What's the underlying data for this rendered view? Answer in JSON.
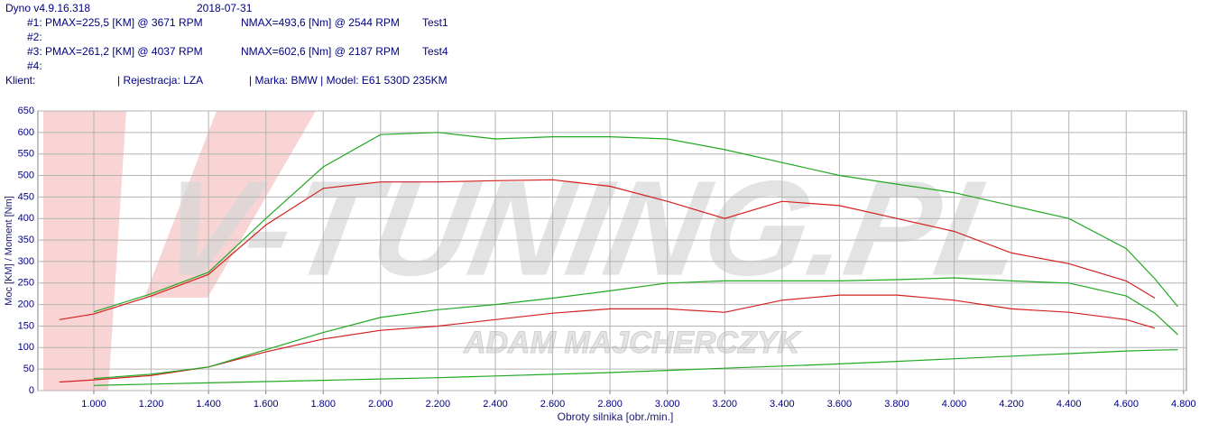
{
  "header": {
    "app": "Dyno v4.9.16.318",
    "date": "2018-07-31",
    "runs": [
      {
        "id": "#1: PMAX=225,5 [KM] @ 3671 RPM",
        "nmax": "NMAX=493,6 [Nm] @ 2544 RPM",
        "test": "Test1"
      },
      {
        "id": "#2:"
      },
      {
        "id": "#3: PMAX=261,2 [KM] @ 4037 RPM",
        "nmax": "NMAX=602,6 [Nm] @ 2187 RPM",
        "test": "Test4"
      },
      {
        "id": "#4:"
      }
    ],
    "client": "Klient:",
    "registration": "| Rejestracja: LZA",
    "make": "| Marka: BMW | Model: E61 530D 235KM"
  },
  "chart_data": {
    "type": "line",
    "watermark": "V-TUNING.PL",
    "watermark_sub": "ADAM MAJCHERCZYK",
    "x_label": "Obroty silnika [obr./min.]",
    "y_label": "Moc [KM] / Moment [Nm]",
    "x": [
      880,
      1000,
      1200,
      1400,
      1600,
      1800,
      2000,
      2200,
      2400,
      2600,
      2800,
      3000,
      3200,
      3400,
      3600,
      3800,
      4000,
      4200,
      4400,
      4600,
      4700,
      4780
    ],
    "series": [
      {
        "color": "#d42020",
        "values": [
          165,
          178,
          220,
          270,
          385,
          470,
          485,
          485,
          488,
          490,
          475,
          440,
          400,
          440,
          430,
          400,
          370,
          320,
          295,
          255,
          215,
          null
        ]
      },
      {
        "color": "#22a822",
        "values": [
          null,
          183,
          225,
          275,
          400,
          520,
          595,
          600,
          585,
          590,
          590,
          585,
          560,
          530,
          500,
          480,
          460,
          430,
          400,
          330,
          260,
          195
        ]
      },
      {
        "color": "#d42020",
        "values": [
          20,
          25,
          35,
          55,
          90,
          120,
          140,
          150,
          165,
          180,
          190,
          190,
          182,
          210,
          222,
          222,
          210,
          190,
          182,
          165,
          145,
          null
        ]
      },
      {
        "color": "#22a822",
        "values": [
          null,
          28,
          38,
          55,
          95,
          135,
          170,
          188,
          200,
          215,
          232,
          250,
          255,
          255,
          255,
          258,
          262,
          255,
          250,
          220,
          180,
          130
        ]
      },
      {
        "color": "#22a822",
        "values": [
          null,
          12,
          15,
          18,
          21,
          24,
          27,
          30,
          34,
          38,
          42,
          47,
          52,
          57,
          62,
          68,
          74,
          80,
          86,
          92,
          94,
          95
        ]
      }
    ],
    "xlim": [
      805,
      4810
    ],
    "ylim": [
      0,
      650
    ],
    "xticks": [
      {
        "value": 1000,
        "label": "1.000"
      },
      {
        "value": 1200,
        "label": "1.200"
      },
      {
        "value": 1400,
        "label": "1.400"
      },
      {
        "value": 1600,
        "label": "1.600"
      },
      {
        "value": 1800,
        "label": "1.800"
      },
      {
        "value": 2000,
        "label": "2.000"
      },
      {
        "value": 2200,
        "label": "2.200"
      },
      {
        "value": 2400,
        "label": "2.400"
      },
      {
        "value": 2600,
        "label": "2.600"
      },
      {
        "value": 2800,
        "label": "2.800"
      },
      {
        "value": 3000,
        "label": "3.000"
      },
      {
        "value": 3200,
        "label": "3.200"
      },
      {
        "value": 3400,
        "label": "3.400"
      },
      {
        "value": 3600,
        "label": "3.600"
      },
      {
        "value": 3800,
        "label": "3.800"
      },
      {
        "value": 4000,
        "label": "4.000"
      },
      {
        "value": 4200,
        "label": "4.200"
      },
      {
        "value": 4400,
        "label": "4.400"
      },
      {
        "value": 4600,
        "label": "4.600"
      },
      {
        "value": 4800,
        "label": "4.800"
      }
    ],
    "yticks": [
      0,
      50,
      100,
      150,
      200,
      250,
      300,
      350,
      400,
      450,
      500,
      550,
      600,
      650
    ],
    "grid": true
  }
}
